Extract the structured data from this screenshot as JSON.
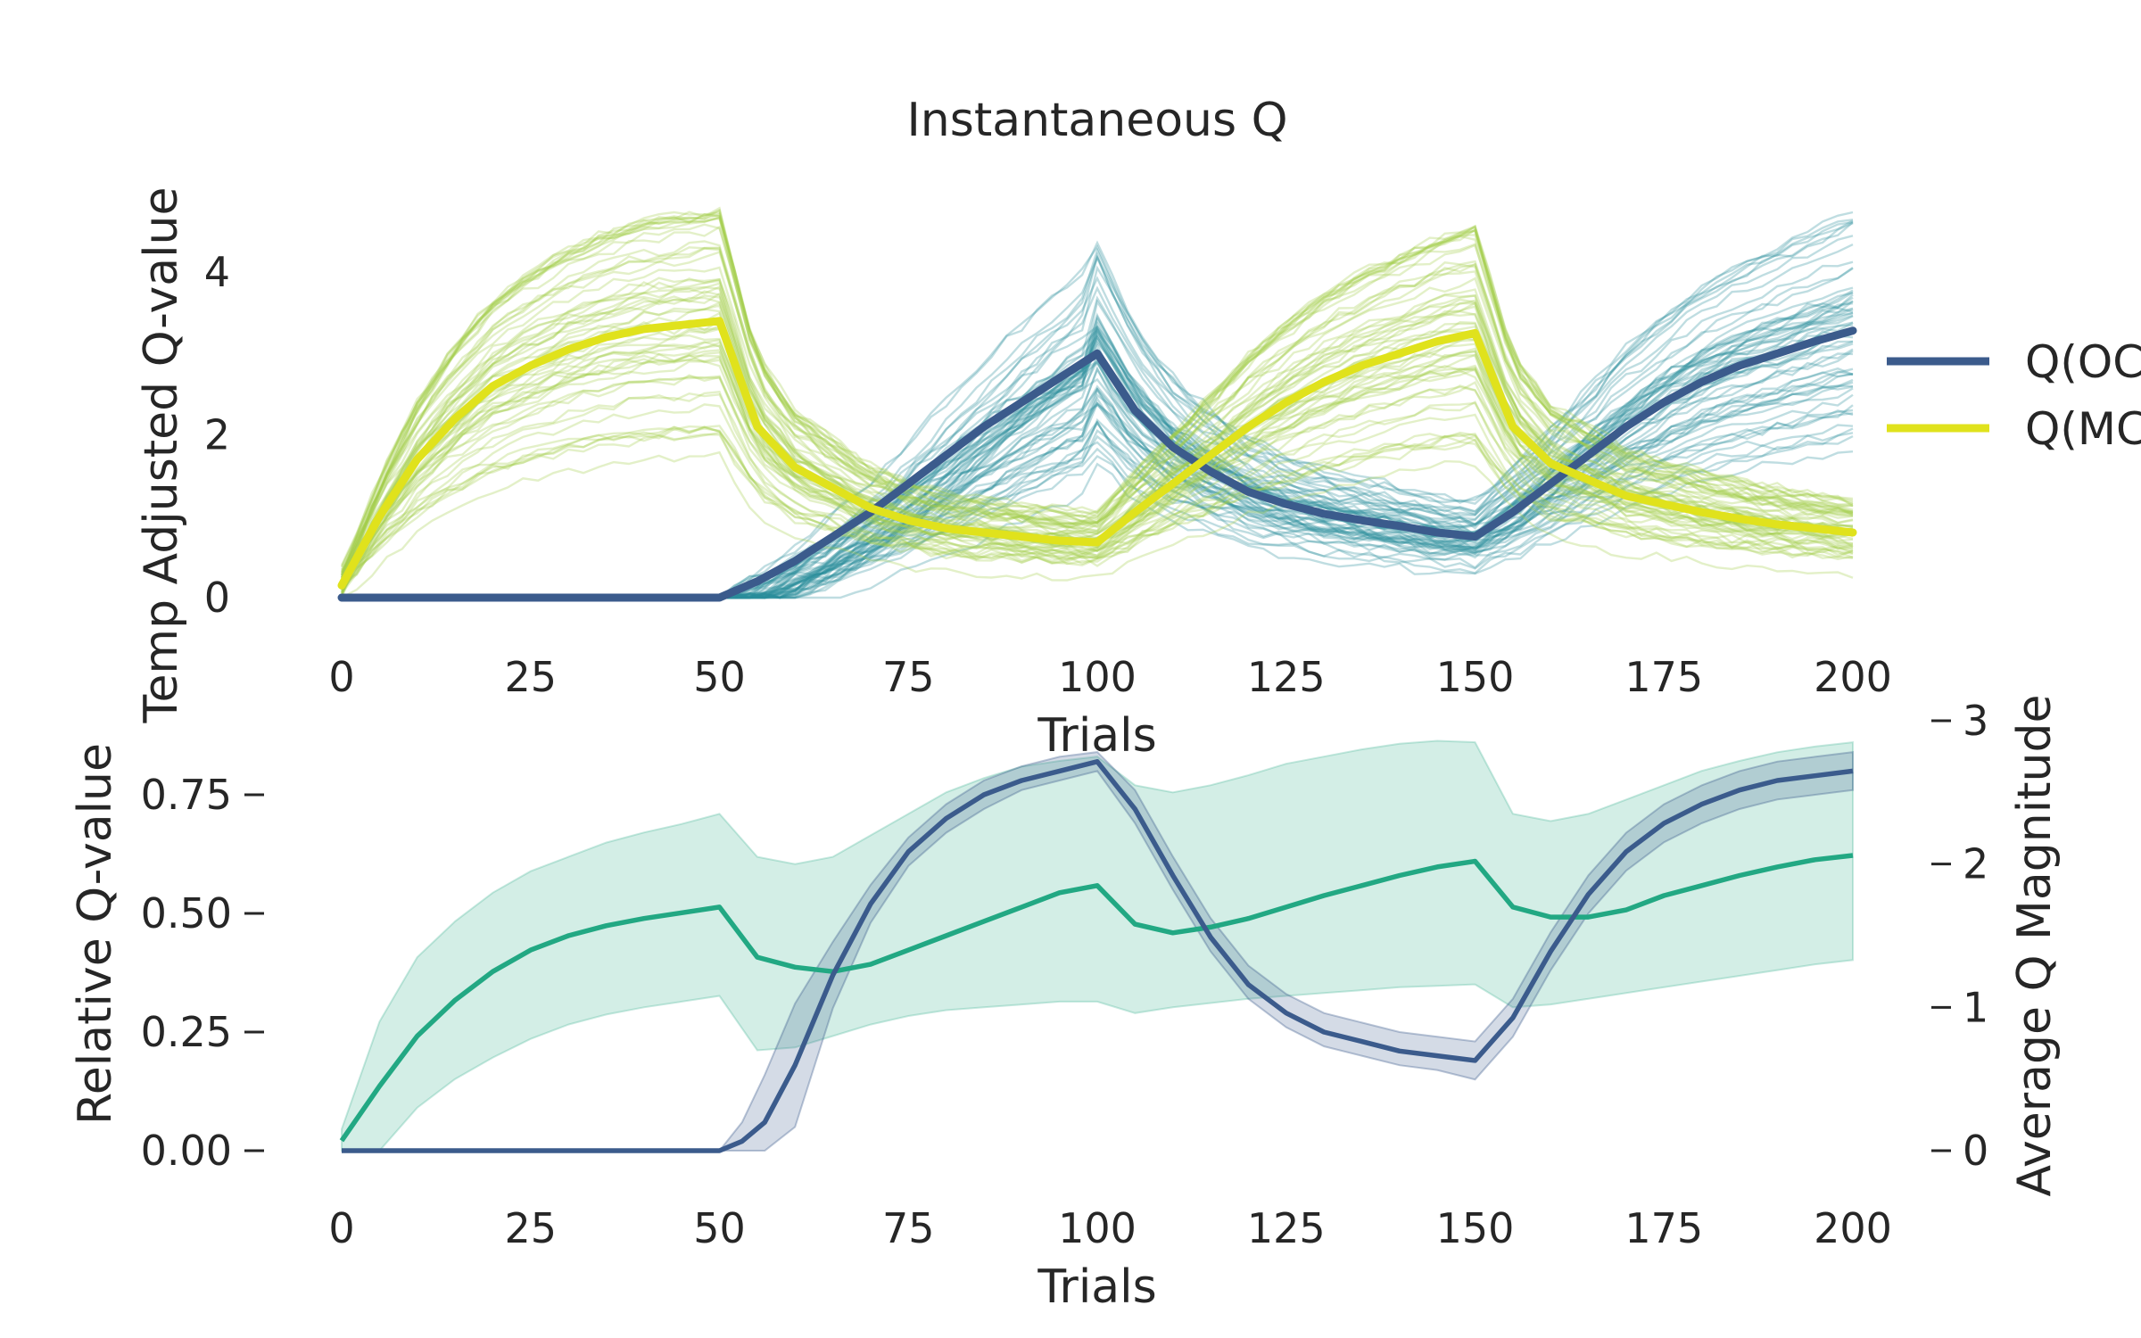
{
  "chart_data": [
    {
      "type": "line",
      "title": "Instantaneous Q",
      "xlabel": "Trials",
      "ylabel": "Temp Adjusted Q-value",
      "xlim": [
        0,
        200
      ],
      "ylim": [
        -0.1,
        5.5
      ],
      "xticks": [
        "0",
        "25",
        "50",
        "75",
        "100",
        "125",
        "150",
        "175",
        "200"
      ],
      "yticks": [
        "0",
        "2",
        "4"
      ],
      "grid": false,
      "legend_position": "right, clipped",
      "series": [
        {
          "name": "Q(OC",
          "color": "#3b5b8c",
          "x": [
            0,
            49,
            50,
            55,
            60,
            65,
            70,
            75,
            80,
            85,
            90,
            95,
            100,
            105,
            110,
            115,
            120,
            125,
            130,
            135,
            140,
            145,
            150,
            155,
            160,
            165,
            170,
            175,
            180,
            185,
            190,
            195,
            200
          ],
          "y": [
            0,
            0,
            0,
            0.2,
            0.45,
            0.75,
            1.05,
            1.4,
            1.75,
            2.1,
            2.4,
            2.7,
            3.0,
            2.3,
            1.85,
            1.55,
            1.3,
            1.15,
            1.03,
            0.95,
            0.88,
            0.8,
            0.75,
            1.05,
            1.4,
            1.75,
            2.1,
            2.4,
            2.65,
            2.85,
            3.0,
            3.15,
            3.28
          ]
        },
        {
          "name": "Q(MC",
          "color": "#e0e21c",
          "x": [
            0,
            5,
            10,
            15,
            20,
            25,
            30,
            35,
            40,
            45,
            50,
            55,
            60,
            65,
            70,
            75,
            80,
            85,
            90,
            95,
            100,
            105,
            110,
            115,
            120,
            125,
            130,
            135,
            140,
            145,
            150,
            155,
            160,
            165,
            170,
            175,
            180,
            185,
            190,
            195,
            200
          ],
          "y": [
            0.15,
            1.0,
            1.7,
            2.2,
            2.6,
            2.85,
            3.05,
            3.2,
            3.3,
            3.35,
            3.4,
            2.1,
            1.6,
            1.35,
            1.1,
            0.95,
            0.85,
            0.8,
            0.75,
            0.7,
            0.68,
            1.05,
            1.4,
            1.75,
            2.1,
            2.4,
            2.65,
            2.85,
            3.0,
            3.15,
            3.25,
            2.1,
            1.65,
            1.45,
            1.25,
            1.15,
            1.05,
            0.97,
            0.9,
            0.85,
            0.8
          ]
        }
      ],
      "individual_traces": {
        "count_per_series": 60,
        "colors": [
          "#2a8f9c",
          "#a3cc4a"
        ]
      }
    },
    {
      "type": "line",
      "xlabel": "Trials",
      "ylabel": "Relative Q-value",
      "ylabel_color": "#3b5b8c",
      "y2label": "Average Q Magnitude",
      "y2label_color": "#22a883",
      "xlim": [
        0,
        200
      ],
      "ylim": [
        -0.05,
        0.9
      ],
      "y2lim": [
        -0.28,
        3.14
      ],
      "xticks": [
        "0",
        "25",
        "50",
        "75",
        "100",
        "125",
        "150",
        "175",
        "200"
      ],
      "yticks": [
        "0.00",
        "0.25",
        "0.50",
        "0.75"
      ],
      "y2ticks": [
        "0",
        "1",
        "2",
        "3"
      ],
      "grid": false,
      "series": [
        {
          "name": "Relative Q-value",
          "axis": "left",
          "color": "#3b5b8c",
          "x": [
            0,
            49,
            50,
            53,
            56,
            60,
            65,
            70,
            75,
            80,
            85,
            90,
            95,
            100,
            105,
            110,
            115,
            120,
            125,
            130,
            135,
            140,
            145,
            150,
            155,
            160,
            165,
            170,
            175,
            180,
            185,
            190,
            195,
            200
          ],
          "y": [
            0,
            0,
            0,
            0.02,
            0.06,
            0.18,
            0.37,
            0.52,
            0.63,
            0.7,
            0.75,
            0.78,
            0.8,
            0.82,
            0.72,
            0.58,
            0.45,
            0.35,
            0.29,
            0.25,
            0.23,
            0.21,
            0.2,
            0.19,
            0.28,
            0.42,
            0.54,
            0.63,
            0.69,
            0.73,
            0.76,
            0.78,
            0.79,
            0.8
          ],
          "band_lower": [
            0,
            0,
            0,
            0,
            0,
            0.05,
            0.3,
            0.48,
            0.6,
            0.67,
            0.72,
            0.76,
            0.78,
            0.8,
            0.69,
            0.55,
            0.42,
            0.32,
            0.26,
            0.22,
            0.2,
            0.18,
            0.17,
            0.15,
            0.24,
            0.38,
            0.5,
            0.59,
            0.65,
            0.69,
            0.72,
            0.74,
            0.75,
            0.76
          ],
          "band_upper": [
            0,
            0,
            0,
            0.06,
            0.16,
            0.31,
            0.44,
            0.56,
            0.66,
            0.73,
            0.78,
            0.81,
            0.83,
            0.84,
            0.76,
            0.62,
            0.49,
            0.39,
            0.33,
            0.29,
            0.27,
            0.25,
            0.24,
            0.23,
            0.32,
            0.46,
            0.58,
            0.67,
            0.73,
            0.77,
            0.8,
            0.82,
            0.83,
            0.84
          ]
        },
        {
          "name": "Average Q Magnitude",
          "axis": "right",
          "color": "#22a883",
          "x": [
            0,
            5,
            10,
            15,
            20,
            25,
            30,
            35,
            40,
            45,
            50,
            55,
            60,
            65,
            70,
            75,
            80,
            85,
            90,
            95,
            100,
            105,
            110,
            115,
            120,
            125,
            130,
            135,
            140,
            145,
            150,
            155,
            160,
            165,
            170,
            175,
            180,
            185,
            190,
            195,
            200
          ],
          "y": [
            0.07,
            0.45,
            0.8,
            1.05,
            1.25,
            1.4,
            1.5,
            1.57,
            1.62,
            1.66,
            1.7,
            1.35,
            1.28,
            1.25,
            1.3,
            1.4,
            1.5,
            1.6,
            1.7,
            1.8,
            1.85,
            1.58,
            1.52,
            1.56,
            1.62,
            1.7,
            1.78,
            1.85,
            1.92,
            1.98,
            2.02,
            1.7,
            1.63,
            1.63,
            1.68,
            1.78,
            1.85,
            1.92,
            1.98,
            2.03,
            2.06
          ],
          "band_lower": [
            0,
            0,
            0.3,
            0.5,
            0.65,
            0.78,
            0.88,
            0.95,
            1.0,
            1.04,
            1.08,
            0.7,
            0.72,
            0.8,
            0.88,
            0.94,
            0.98,
            1.0,
            1.02,
            1.04,
            1.04,
            0.96,
            1.0,
            1.03,
            1.06,
            1.08,
            1.1,
            1.12,
            1.14,
            1.15,
            1.16,
            1.0,
            1.02,
            1.06,
            1.1,
            1.14,
            1.18,
            1.22,
            1.26,
            1.3,
            1.33
          ],
          "band_upper": [
            0.15,
            0.9,
            1.35,
            1.6,
            1.8,
            1.95,
            2.05,
            2.15,
            2.22,
            2.28,
            2.35,
            2.05,
            2.0,
            2.05,
            2.2,
            2.35,
            2.5,
            2.6,
            2.68,
            2.72,
            2.75,
            2.55,
            2.5,
            2.55,
            2.62,
            2.7,
            2.75,
            2.8,
            2.84,
            2.86,
            2.85,
            2.35,
            2.3,
            2.35,
            2.45,
            2.55,
            2.65,
            2.72,
            2.78,
            2.82,
            2.85
          ]
        }
      ]
    }
  ]
}
